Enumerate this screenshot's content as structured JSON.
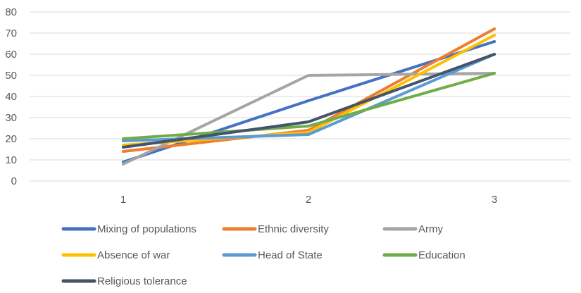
{
  "chart_data": {
    "type": "line",
    "title": "",
    "xlabel": "",
    "ylabel": "",
    "x": [
      1,
      2,
      3
    ],
    "x_tick_labels": [
      "1",
      "2",
      "3"
    ],
    "ylim": [
      0,
      80
    ],
    "y_ticks": [
      0,
      10,
      20,
      30,
      40,
      50,
      60,
      70,
      80
    ],
    "y_tick_labels": [
      "0",
      "10",
      "20",
      "30",
      "40",
      "50",
      "60",
      "70",
      "80"
    ],
    "grid": "horizontal",
    "legend_position": "bottom",
    "series": [
      {
        "name": "Mixing of populations",
        "color": "#4472C4",
        "values": [
          9,
          38,
          66
        ]
      },
      {
        "name": "Ethnic diversity",
        "color": "#ED7D31",
        "values": [
          14,
          24,
          72
        ]
      },
      {
        "name": "Army",
        "color": "#A5A5A5",
        "values": [
          8,
          50,
          51
        ]
      },
      {
        "name": "Absence of war",
        "color": "#FFC000",
        "values": [
          17,
          23,
          69
        ]
      },
      {
        "name": "Head of State",
        "color": "#5B9BD5",
        "values": [
          19,
          22,
          60
        ]
      },
      {
        "name": "Education",
        "color": "#70AD47",
        "values": [
          20,
          26,
          51
        ]
      },
      {
        "name": "Religious tolerance",
        "color": "#44546A",
        "values": [
          16,
          28,
          60
        ]
      }
    ]
  }
}
